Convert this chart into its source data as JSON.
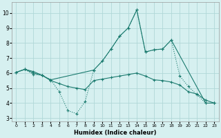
{
  "xlabel": "Humidex (Indice chaleur)",
  "bg_color": "#d6f0f0",
  "grid_color": "#b0d8d8",
  "line_color": "#1a7a6e",
  "xlim": [
    -0.5,
    23.5
  ],
  "ylim": [
    2.8,
    10.7
  ],
  "yticks": [
    3,
    4,
    5,
    6,
    7,
    8,
    9,
    10
  ],
  "xticks": [
    0,
    1,
    2,
    3,
    4,
    5,
    6,
    7,
    8,
    9,
    10,
    11,
    12,
    13,
    14,
    15,
    16,
    17,
    18,
    19,
    20,
    21,
    22,
    23
  ],
  "line1_x": [
    0,
    1,
    2,
    3,
    4,
    5,
    6,
    7,
    8,
    9,
    10,
    11,
    12,
    13,
    14,
    15,
    16,
    17,
    18,
    19,
    20,
    21,
    22,
    23
  ],
  "line1_y": [
    6.05,
    6.25,
    5.9,
    5.85,
    5.55,
    4.75,
    3.5,
    3.3,
    4.1,
    6.2,
    6.8,
    7.6,
    8.45,
    9.0,
    10.2,
    7.4,
    7.55,
    7.6,
    8.2,
    5.8,
    5.1,
    4.55,
    4.0,
    4.0
  ],
  "line2_x": [
    0,
    1,
    2,
    3,
    4,
    9,
    10,
    11,
    12,
    13,
    14,
    15,
    16,
    17,
    18,
    22,
    23
  ],
  "line2_y": [
    6.05,
    6.25,
    6.1,
    5.85,
    5.55,
    6.2,
    6.8,
    7.6,
    8.45,
    9.0,
    10.2,
    7.4,
    7.55,
    7.6,
    8.2,
    4.0,
    4.0
  ],
  "line3_x": [
    0,
    1,
    2,
    3,
    4,
    5,
    6,
    7,
    8,
    9,
    10,
    11,
    12,
    13,
    14,
    15,
    16,
    17,
    18,
    19,
    20,
    21,
    22,
    23
  ],
  "line3_y": [
    6.05,
    6.25,
    6.0,
    5.85,
    5.5,
    5.3,
    5.1,
    5.0,
    4.9,
    5.5,
    5.6,
    5.7,
    5.8,
    5.9,
    6.0,
    5.8,
    5.55,
    5.5,
    5.4,
    5.2,
    4.75,
    4.6,
    4.2,
    4.0
  ]
}
